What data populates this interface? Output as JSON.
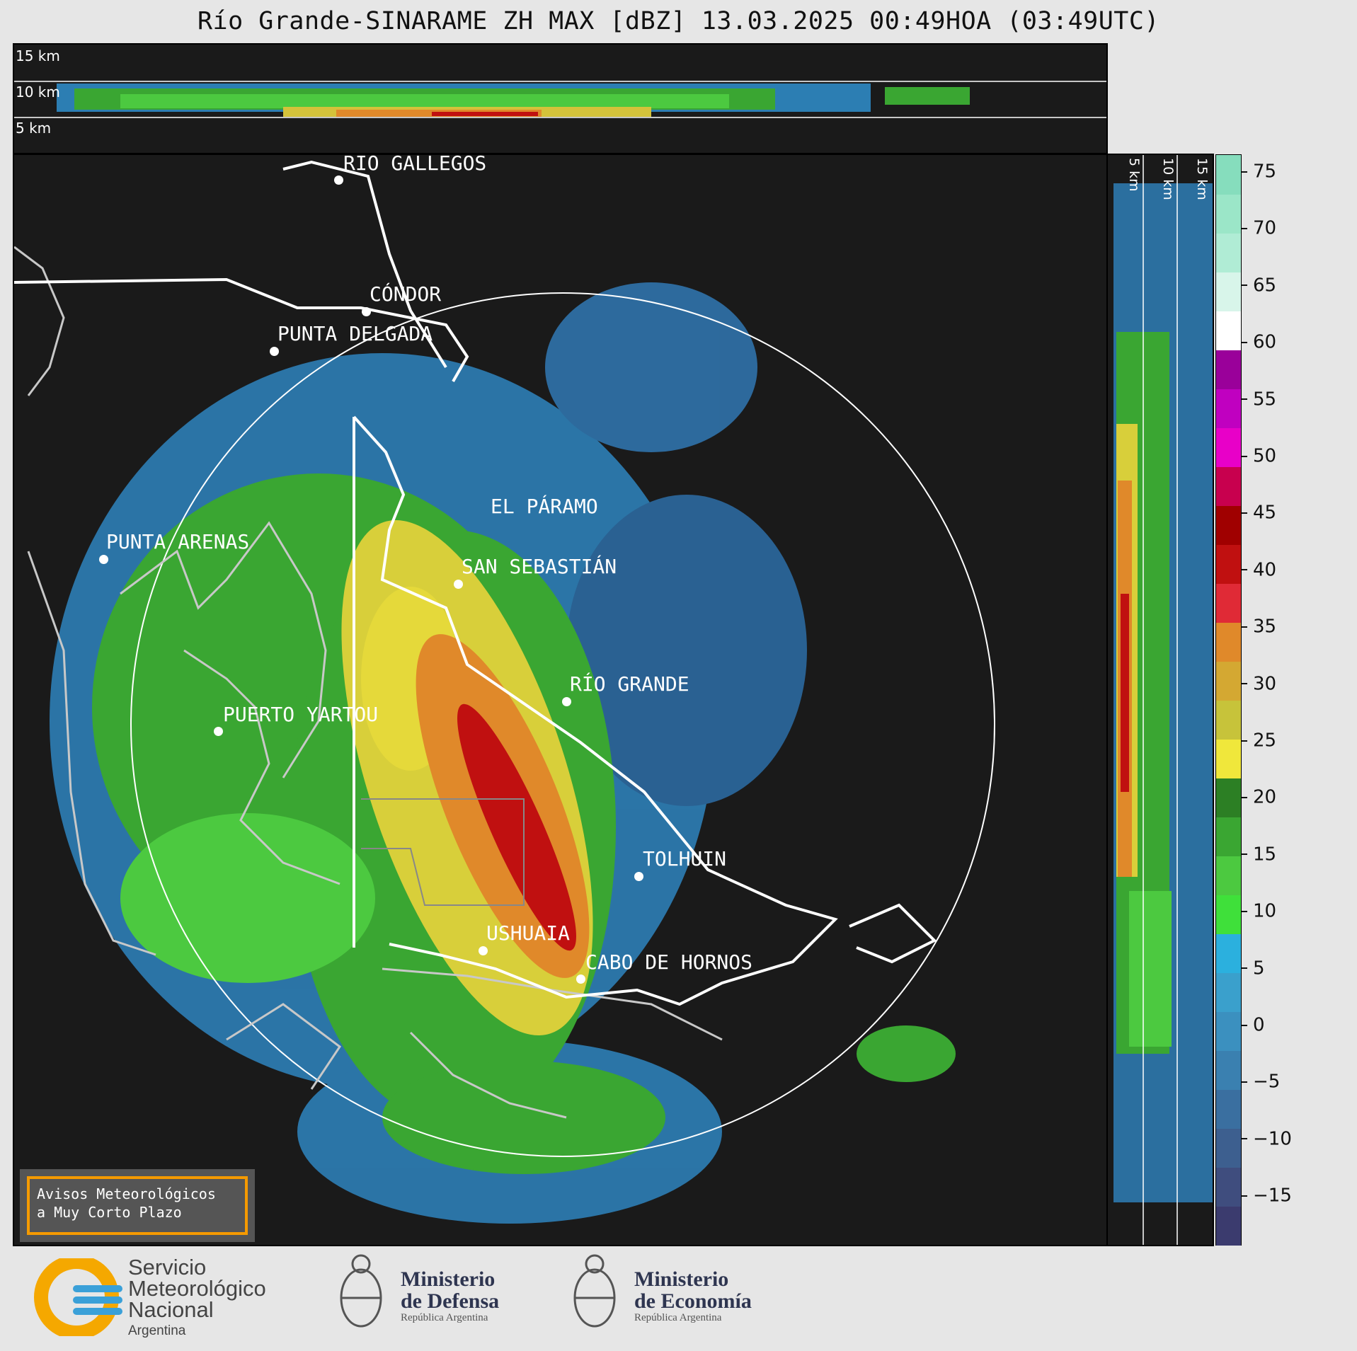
{
  "title": "Río Grande-SINARAME ZH MAX [dBZ] 13.03.2025 00:49HOA (03:49UTC)",
  "top_panel": {
    "km_labels": [
      "15 km",
      "10 km",
      "5 km"
    ]
  },
  "side_panel": {
    "km_labels": [
      "5 km",
      "10 km",
      "15 km"
    ]
  },
  "cities": [
    {
      "name": "RÍO GALLEGOS"
    },
    {
      "name": "CÓNDOR"
    },
    {
      "name": "PUNTA DELGADA"
    },
    {
      "name": "EL PÁRAMO"
    },
    {
      "name": "PUNTA ARENAS"
    },
    {
      "name": "SAN SEBASTIÁN"
    },
    {
      "name": "RÍO GRANDE"
    },
    {
      "name": "PUERTO YARTOU"
    },
    {
      "name": "TOLHUIN"
    },
    {
      "name": "USHUAIA"
    },
    {
      "name": "CABO DE HORNOS"
    }
  ],
  "colorbar": {
    "unit": "dBZ",
    "ticks": [
      "75",
      "70",
      "65",
      "60",
      "55",
      "50",
      "45",
      "40",
      "35",
      "30",
      "25",
      "20",
      "15",
      "10",
      "5",
      "0",
      "−5",
      "−10",
      "−15"
    ],
    "colors": [
      "#3b3b6e",
      "#3f4d7e",
      "#3d5f8f",
      "#3a6fa0",
      "#3a80b0",
      "#3b90bf",
      "#3aa0cc",
      "#2bb0de",
      "#3fe03a",
      "#4cc940",
      "#3aa632",
      "#2c7f24",
      "#f0e73b",
      "#c7c33a",
      "#d4a832",
      "#e0892a",
      "#e02a36",
      "#c01010",
      "#a00000",
      "#c8004e",
      "#e800c8",
      "#c000c0",
      "#9a009a",
      "#ffffff",
      "#d8f5ea",
      "#b0ecd5",
      "#9be6c8",
      "#86ddbd"
    ]
  },
  "warning_box": {
    "line1": "Avisos Meteorológicos",
    "line2": "a Muy Corto Plazo"
  },
  "logos": {
    "smn": {
      "line1": "Servicio",
      "line2": "Meteorológico",
      "line3": "Nacional",
      "line4": "Argentina"
    },
    "defensa": {
      "line1": "Ministerio",
      "line2": "de Defensa",
      "line3": "República Argentina"
    },
    "economia": {
      "line1": "Ministerio",
      "line2": "de Economía",
      "line3": "República Argentina"
    }
  }
}
